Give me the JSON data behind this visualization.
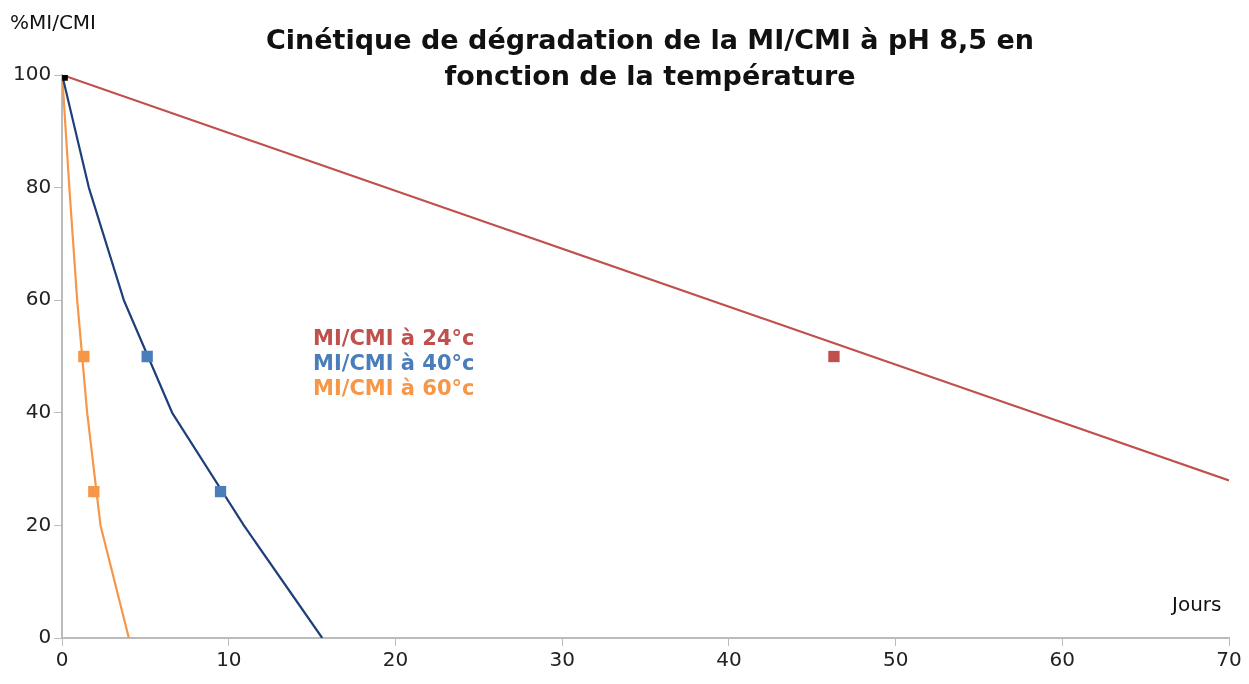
{
  "chart_data": {
    "type": "scatter",
    "title": "Cinétique de dégradation de la MI/CMI à pH 8,5 en fonction de la température",
    "xlabel": "Jours",
    "ylabel": "%MI/CMI",
    "xlim": [
      0,
      70
    ],
    "xticks": [
      0,
      10,
      20,
      30,
      40,
      50,
      60,
      70
    ],
    "ylim": [
      0,
      100
    ],
    "yticks": [
      0,
      20,
      40,
      60,
      80,
      100
    ],
    "grid": false,
    "legend": "center",
    "marker": "square",
    "series": [
      {
        "type": "line",
        "marker": "none",
        "color": "#c0504d",
        "x": [
          0,
          70
        ],
        "values": [
          100,
          28
        ]
      },
      {
        "type": "line",
        "marker": "none",
        "color": "#1f3f7a",
        "x": [
          0,
          1.6,
          3.7,
          6.6,
          10.9,
          15.6
        ],
        "values": [
          100,
          80,
          60,
          40,
          20,
          0
        ]
      },
      {
        "type": "line",
        "marker": "none",
        "color": "#f79646",
        "x": [
          0,
          0.43,
          0.9,
          1.5,
          2.3,
          4.0
        ],
        "values": [
          100,
          80,
          60,
          40,
          20,
          0
        ]
      },
      {
        "name": "MI/CMI à 24°c",
        "color": "#c0504d",
        "x": [
          46.3
        ],
        "values": [
          50
        ]
      },
      {
        "name": "MI/CMI à 40°c",
        "color": "#4a7ebb",
        "x": [
          5.1,
          9.5
        ],
        "values": [
          50,
          26
        ]
      },
      {
        "name": "MI/CMI à 60°c",
        "color": "#f79646",
        "x": [
          1.3,
          1.9
        ],
        "values": [
          50,
          26
        ]
      },
      {
        "color": "#000000",
        "x": [
          0
        ],
        "values": [
          100
        ]
      }
    ]
  }
}
